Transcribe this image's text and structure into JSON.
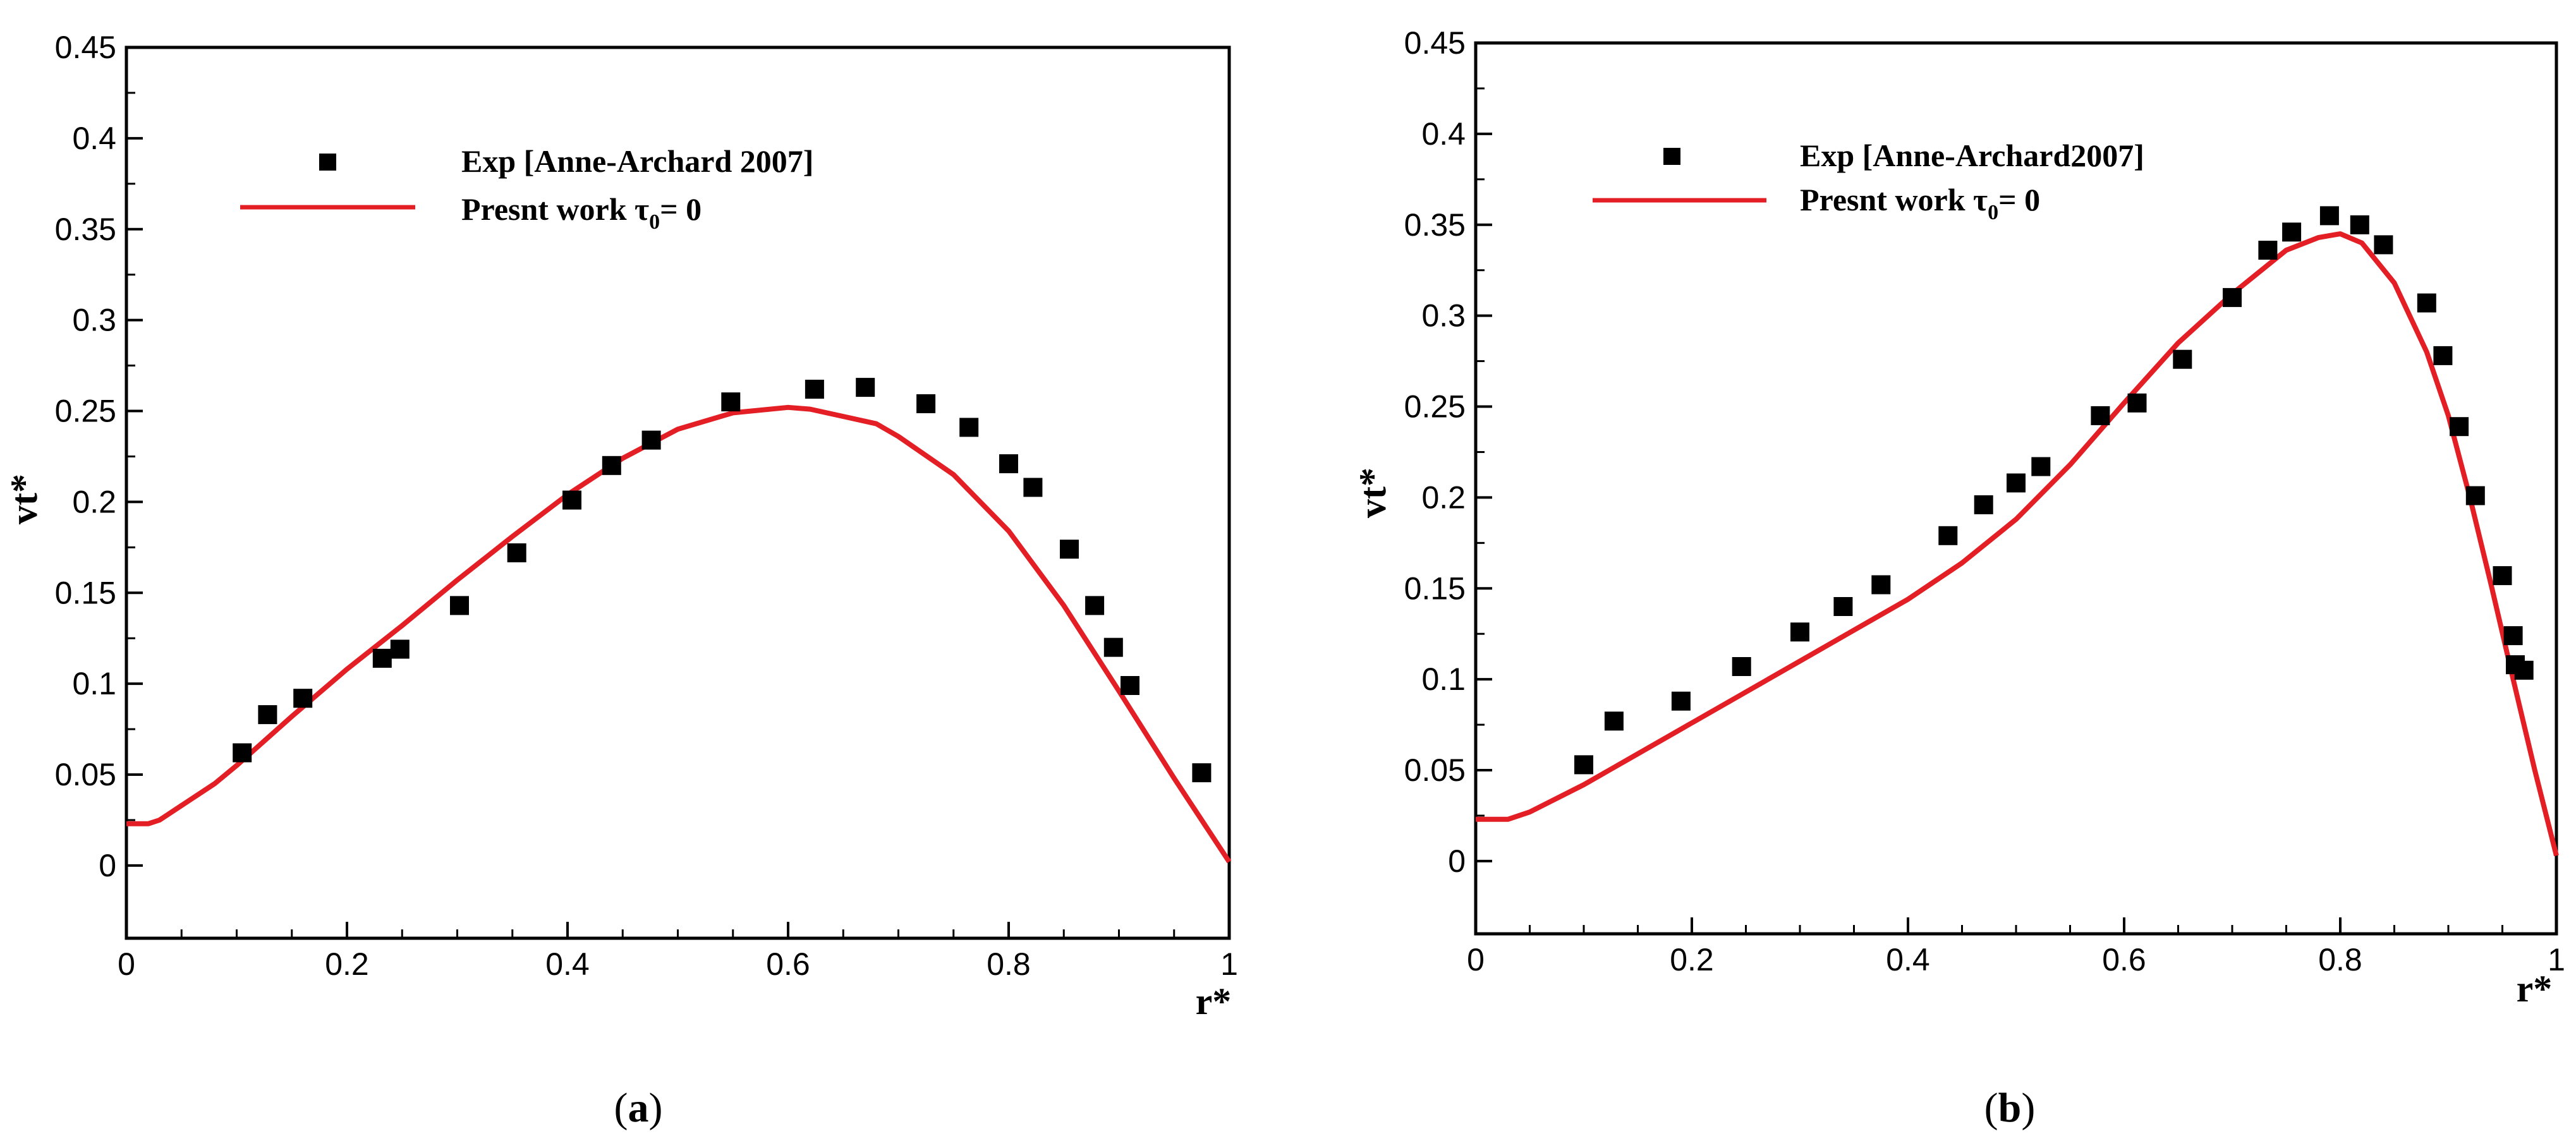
{
  "chart_data": [
    {
      "type": "scatter",
      "panel": "a",
      "caption_letter": "a",
      "xlabel": "r*",
      "ylabel": "vt*",
      "xlim": [
        0,
        1
      ],
      "ylim": [
        -0.04,
        0.45
      ],
      "xticks": [
        "0",
        "0.2",
        "0.4",
        "0.6",
        "0.8",
        "1"
      ],
      "yticks": [
        "0",
        "0.05",
        "0.1",
        "0.15",
        "0.2",
        "0.25",
        "0.3",
        "0.35",
        "0.4",
        "0.45"
      ],
      "legend": {
        "exp_label": "Exp [Anne-Archard 2007]",
        "model_label_prefix": "Presnt work τ",
        "model_label_sub": "0",
        "model_label_suffix": "= 0"
      },
      "colors": {
        "line": "#e31e24",
        "marker": "#000000"
      },
      "series": [
        {
          "name": "Exp [Anne-Archard 2007]",
          "kind": "markers",
          "x": [
            0.105,
            0.128,
            0.16,
            0.232,
            0.248,
            0.302,
            0.354,
            0.404,
            0.44,
            0.476,
            0.548,
            0.624,
            0.67,
            0.725,
            0.764,
            0.8,
            0.822,
            0.855,
            0.878,
            0.895,
            0.91,
            0.975
          ],
          "y": [
            0.062,
            0.083,
            0.092,
            0.114,
            0.119,
            0.143,
            0.172,
            0.201,
            0.22,
            0.234,
            0.255,
            0.262,
            0.263,
            0.254,
            0.241,
            0.221,
            0.208,
            0.174,
            0.143,
            0.12,
            0.099,
            0.051
          ]
        },
        {
          "name": "Presnt work τ0= 0",
          "kind": "line",
          "x": [
            0,
            0.02,
            0.03,
            0.05,
            0.08,
            0.1,
            0.15,
            0.2,
            0.25,
            0.3,
            0.35,
            0.4,
            0.45,
            0.5,
            0.55,
            0.6,
            0.62,
            0.65,
            0.68,
            0.7,
            0.75,
            0.8,
            0.85,
            0.9,
            0.95,
            1.0
          ],
          "y": [
            0.023,
            0.023,
            0.025,
            0.033,
            0.045,
            0.055,
            0.082,
            0.108,
            0.132,
            0.157,
            0.181,
            0.204,
            0.224,
            0.24,
            0.249,
            0.252,
            0.251,
            0.247,
            0.243,
            0.236,
            0.215,
            0.184,
            0.143,
            0.096,
            0.048,
            0.002
          ]
        }
      ]
    },
    {
      "type": "scatter",
      "panel": "b",
      "caption_letter": "b",
      "xlabel": "r*",
      "ylabel": "vt*",
      "xlim": [
        0,
        1
      ],
      "ylim": [
        -0.04,
        0.45
      ],
      "xticks": [
        "0",
        "0.2",
        "0.4",
        "0.6",
        "0.8",
        "1"
      ],
      "yticks": [
        "0",
        "0.05",
        "0.1",
        "0.15",
        "0.2",
        "0.25",
        "0.3",
        "0.35",
        "0.4",
        "0.45"
      ],
      "legend": {
        "exp_label": "Exp [Anne-Archard2007]",
        "model_label_prefix": "Presnt work τ",
        "model_label_sub": "0",
        "model_label_suffix": "= 0"
      },
      "colors": {
        "line": "#e31e24",
        "marker": "#000000"
      },
      "series": [
        {
          "name": "Exp [Anne-Archard2007]",
          "kind": "markers",
          "x": [
            0.1,
            0.128,
            0.19,
            0.246,
            0.3,
            0.34,
            0.375,
            0.437,
            0.47,
            0.5,
            0.523,
            0.578,
            0.612,
            0.654,
            0.7,
            0.733,
            0.755,
            0.79,
            0.818,
            0.84,
            0.88,
            0.895,
            0.91,
            0.925,
            0.95,
            0.96,
            0.962,
            0.97
          ],
          "y": [
            0.053,
            0.077,
            0.088,
            0.107,
            0.126,
            0.14,
            0.152,
            0.179,
            0.196,
            0.208,
            0.217,
            0.245,
            0.252,
            0.276,
            0.31,
            0.336,
            0.346,
            0.355,
            0.35,
            0.339,
            0.307,
            0.278,
            0.239,
            0.201,
            0.157,
            0.124,
            0.108,
            0.105
          ]
        },
        {
          "name": "Presnt work τ0= 0",
          "kind": "line",
          "x": [
            0,
            0.03,
            0.05,
            0.1,
            0.15,
            0.2,
            0.25,
            0.3,
            0.35,
            0.4,
            0.45,
            0.5,
            0.55,
            0.6,
            0.65,
            0.7,
            0.75,
            0.78,
            0.8,
            0.82,
            0.85,
            0.88,
            0.9,
            0.92,
            0.94,
            0.96,
            0.98,
            1.0
          ],
          "y": [
            0.023,
            0.023,
            0.027,
            0.042,
            0.059,
            0.076,
            0.093,
            0.11,
            0.127,
            0.144,
            0.164,
            0.188,
            0.218,
            0.252,
            0.285,
            0.312,
            0.336,
            0.343,
            0.345,
            0.34,
            0.318,
            0.28,
            0.245,
            0.2,
            0.151,
            0.1,
            0.05,
            0.003
          ]
        }
      ]
    }
  ]
}
